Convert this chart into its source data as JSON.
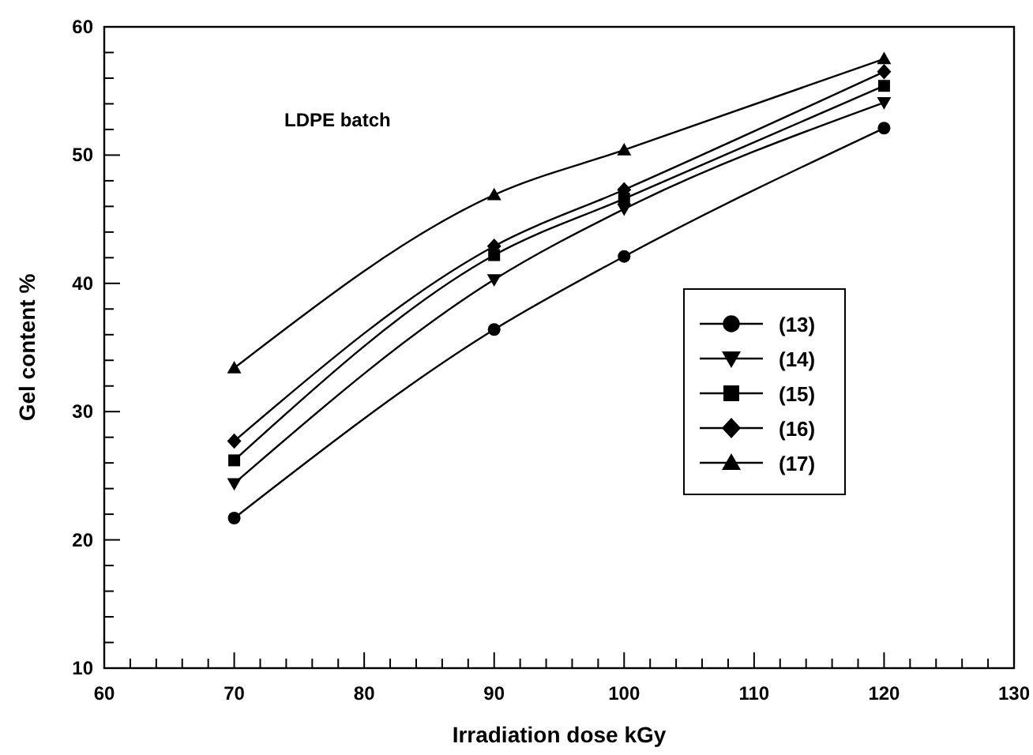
{
  "chart_data": {
    "type": "line",
    "xlabel": "Irradiation dose kGy",
    "ylabel": "Gel content %",
    "annotations": [
      "LDPE batch"
    ],
    "x": [
      70,
      90,
      100,
      120
    ],
    "xlim": [
      60,
      130
    ],
    "ylim": [
      10,
      60
    ],
    "xticks": [
      60,
      {
        "value": 62,
        "label": null
      },
      {
        "value": 64,
        "label": null
      },
      {
        "value": 66,
        "label": null
      },
      {
        "value": 68,
        "label": null
      },
      70,
      {
        "value": 72,
        "label": null
      },
      {
        "value": 74,
        "label": null
      },
      {
        "value": 76,
        "label": null
      },
      {
        "value": 78,
        "label": null
      },
      80,
      {
        "value": 82,
        "label": null
      },
      {
        "value": 84,
        "label": null
      },
      {
        "value": 86,
        "label": null
      },
      {
        "value": 88,
        "label": null
      },
      90,
      {
        "value": 92,
        "label": null
      },
      {
        "value": 94,
        "label": null
      },
      {
        "value": 96,
        "label": null
      },
      {
        "value": 98,
        "label": null
      },
      100,
      {
        "value": 102,
        "label": null
      },
      {
        "value": 104,
        "label": null
      },
      {
        "value": 106,
        "label": null
      },
      {
        "value": 108,
        "label": null
      },
      110,
      {
        "value": 112,
        "label": null
      },
      {
        "value": 114,
        "label": null
      },
      {
        "value": 116,
        "label": null
      },
      {
        "value": 118,
        "label": null
      },
      120,
      {
        "value": 122,
        "label": null
      },
      {
        "value": 124,
        "label": null
      },
      {
        "value": 126,
        "label": null
      },
      {
        "value": 128,
        "label": null
      },
      130
    ],
    "yticks": [
      10,
      {
        "value": 12,
        "label": null
      },
      {
        "value": 14,
        "label": null
      },
      {
        "value": 16,
        "label": null
      },
      {
        "value": 18,
        "label": null
      },
      20,
      {
        "value": 22,
        "label": null
      },
      {
        "value": 24,
        "label": null
      },
      {
        "value": 26,
        "label": null
      },
      {
        "value": 28,
        "label": null
      },
      30,
      {
        "value": 32,
        "label": null
      },
      {
        "value": 34,
        "label": null
      },
      {
        "value": 36,
        "label": null
      },
      {
        "value": 38,
        "label": null
      },
      40,
      {
        "value": 42,
        "label": null
      },
      {
        "value": 44,
        "label": null
      },
      {
        "value": 46,
        "label": null
      },
      {
        "value": 48,
        "label": null
      },
      50,
      {
        "value": 52,
        "label": null
      },
      {
        "value": 54,
        "label": null
      },
      {
        "value": 56,
        "label": null
      },
      {
        "value": 58,
        "label": null
      },
      60
    ],
    "legend": "right",
    "grid": false,
    "line_style": "solid",
    "series": [
      {
        "name": "(13)",
        "color": "#000000",
        "marker": "circle",
        "values": [
          21.7,
          36.4,
          42.1,
          52.1
        ]
      },
      {
        "name": "(14)",
        "color": "#000000",
        "marker": "triangle-down",
        "values": [
          24.4,
          40.3,
          45.8,
          54.1
        ]
      },
      {
        "name": "(15)",
        "color": "#000000",
        "marker": "square",
        "values": [
          26.2,
          42.2,
          46.6,
          55.4
        ]
      },
      {
        "name": "(16)",
        "color": "#000000",
        "marker": "diamond",
        "values": [
          27.7,
          42.9,
          47.3,
          56.5
        ]
      },
      {
        "name": "(17)",
        "color": "#000000",
        "marker": "triangle",
        "values": [
          33.4,
          46.9,
          50.4,
          57.5
        ]
      }
    ]
  }
}
